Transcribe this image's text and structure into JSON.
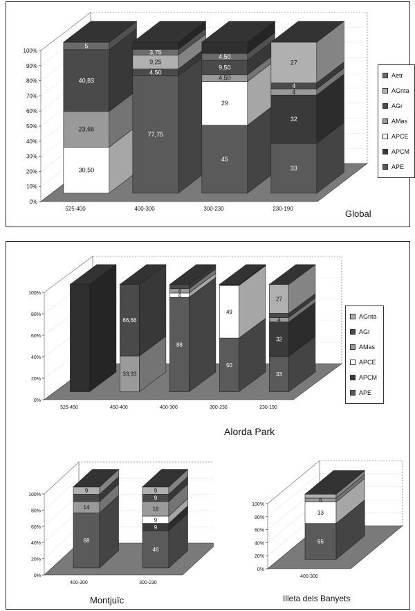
{
  "colors": {
    "APE": "#5a5a5a",
    "APCM": "#3a3a3a",
    "APCE": "#ffffff",
    "AMas": "#9a9a9a",
    "AGr": "#4a4a4a",
    "AGnta": "#b0b0b0",
    "Aetr": "#6a6a6a",
    "rest": "#2f2f2f"
  },
  "chart_data": [
    {
      "type": "bar",
      "subtype": "stacked-100-3d",
      "title": "Global",
      "categories": [
        "525-400",
        "400-300",
        "300-230",
        "230-190"
      ],
      "y_ticks": [
        "0%",
        "10%",
        "20%",
        "30%",
        "40%",
        "50%",
        "60%",
        "70%",
        "80%",
        "90%",
        "100%"
      ],
      "legend": [
        "Aetr",
        "AGnta",
        "AGr",
        "AMas",
        "APCE",
        "APCM",
        "APE"
      ],
      "legend_position": "right",
      "ylim": [
        0,
        100
      ],
      "series": [
        {
          "name": "APE",
          "values": [
            0,
            77.75,
            45,
            33
          ]
        },
        {
          "name": "APCM",
          "values": [
            0,
            0,
            0,
            32
          ]
        },
        {
          "name": "APCE",
          "values": [
            30.5,
            0,
            29,
            0
          ]
        },
        {
          "name": "AMas",
          "values": [
            23.66,
            0,
            4.5,
            4
          ]
        },
        {
          "name": "AGr",
          "values": [
            40.83,
            4.5,
            9.5,
            4
          ]
        },
        {
          "name": "AGnta",
          "values": [
            0,
            9.25,
            0,
            27
          ]
        },
        {
          "name": "Aetr",
          "values": [
            5,
            3.75,
            4.5,
            0
          ]
        }
      ],
      "labels": [
        [
          null,
          null,
          "30,50",
          "23,66",
          "40,83",
          null,
          "5"
        ],
        [
          "77,75",
          null,
          null,
          null,
          "4,50",
          "9,25",
          "3,75"
        ],
        [
          "45",
          null,
          "29",
          "4,50",
          "9,50",
          null,
          "4,50"
        ],
        [
          "33",
          "32",
          null,
          "4",
          "4",
          "27",
          null
        ]
      ]
    },
    {
      "type": "bar",
      "subtype": "stacked-100-3d",
      "title": "Alorda Park",
      "categories": [
        "525-450",
        "450-400",
        "400-300",
        "300-230",
        "230-190"
      ],
      "y_ticks": [
        "0%",
        "20%",
        "40%",
        "60%",
        "80%",
        "100%"
      ],
      "legend": [
        "AGnta",
        "AGr",
        "AMas",
        "APCE",
        "APCM",
        "APE"
      ],
      "legend_position": "right",
      "ylim": [
        0,
        100
      ],
      "series": [
        {
          "name": "APE",
          "values": [
            0,
            0,
            88,
            50,
            33
          ]
        },
        {
          "name": "APCM",
          "values": [
            0,
            0,
            0,
            0,
            32
          ]
        },
        {
          "name": "APCE",
          "values": [
            0,
            0,
            4,
            49,
            0
          ]
        },
        {
          "name": "AMas",
          "values": [
            0,
            33.33,
            4,
            0,
            4
          ]
        },
        {
          "name": "AGr",
          "values": [
            0,
            66.66,
            4,
            0,
            4
          ]
        },
        {
          "name": "AGnta",
          "values": [
            0,
            0,
            0,
            0,
            27
          ]
        }
      ],
      "labels": [
        [
          null,
          null,
          null,
          null,
          null,
          null
        ],
        [
          null,
          null,
          null,
          "33,33",
          "66,66",
          null
        ],
        [
          "88",
          null,
          "4",
          "4",
          null,
          null
        ],
        [
          "50",
          null,
          "49",
          null,
          null,
          null
        ],
        [
          "33",
          "32",
          null,
          "4",
          null,
          "27"
        ]
      ]
    },
    {
      "type": "bar",
      "subtype": "stacked-100-3d",
      "title": "Montjuïc",
      "categories": [
        "400-300",
        "300-230"
      ],
      "y_ticks": [
        "0%",
        "20%",
        "40%",
        "60%",
        "80%",
        "100%"
      ],
      "ylim": [
        0,
        100
      ],
      "series": [
        {
          "name": "APE",
          "values": [
            68,
            46
          ]
        },
        {
          "name": "APCM",
          "values": [
            0,
            9
          ]
        },
        {
          "name": "APCE",
          "values": [
            0,
            9
          ]
        },
        {
          "name": "AMas",
          "values": [
            14,
            18
          ]
        },
        {
          "name": "AGr",
          "values": [
            9,
            9
          ]
        },
        {
          "name": "AGnta",
          "values": [
            9,
            9
          ]
        }
      ],
      "labels": [
        [
          "68",
          null,
          null,
          "14",
          null,
          "9"
        ],
        [
          "46",
          "9",
          "9",
          "18",
          "9",
          "9"
        ]
      ]
    },
    {
      "type": "bar",
      "subtype": "stacked-100-3d",
      "title": "Illeta dels Banyets",
      "categories": [
        "400-300"
      ],
      "y_ticks": [
        "0%",
        "20%",
        "40%",
        "60%",
        "80%",
        "100%"
      ],
      "ylim": [
        0,
        100
      ],
      "series": [
        {
          "name": "APE",
          "values": [
            55
          ]
        },
        {
          "name": "APCE",
          "values": [
            33
          ]
        },
        {
          "name": "AMas",
          "values": [
            6
          ]
        },
        {
          "name": "AGnta",
          "values": [
            6
          ]
        }
      ],
      "labels": [
        [
          "55",
          "33",
          "6",
          null
        ]
      ]
    }
  ]
}
